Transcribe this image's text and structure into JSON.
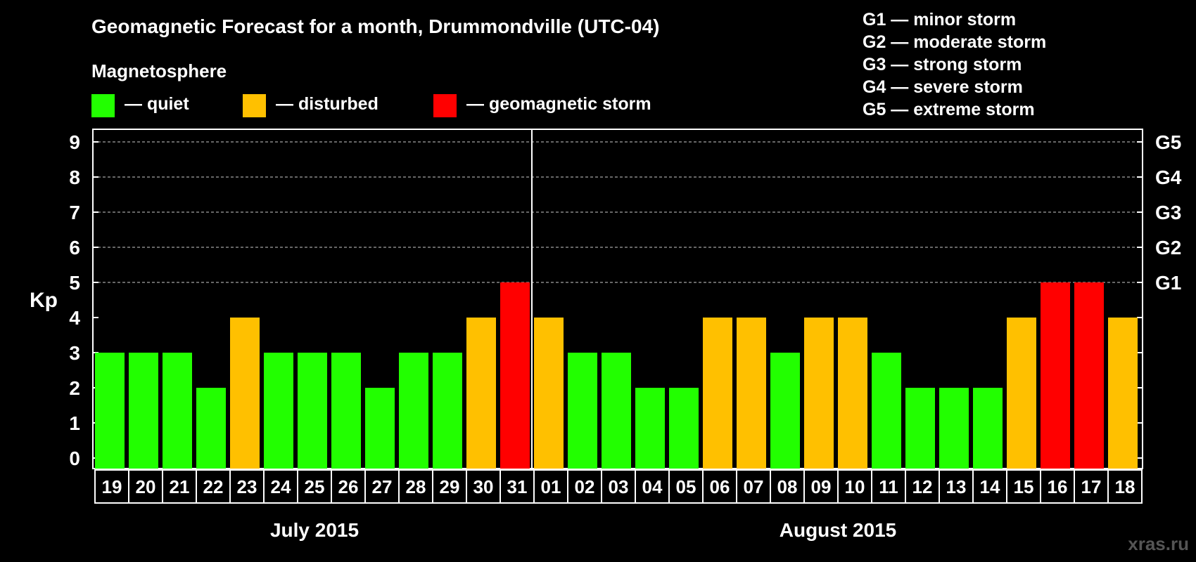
{
  "title": "Geomagnetic Forecast for a month, Drummondville (UTC-04)",
  "subtitle": "Magnetosphere",
  "legend": [
    {
      "label": "— quiet",
      "color": "#22ff00"
    },
    {
      "label": "— disturbed",
      "color": "#ffc000"
    },
    {
      "label": "— geomagnetic storm",
      "color": "#ff0000"
    }
  ],
  "storm_scale": [
    "G1 — minor storm",
    "G2 — moderate storm",
    "G3 — strong storm",
    "G4 — severe storm",
    "G5 — extreme storm"
  ],
  "watermark": "xras.ru",
  "colors": {
    "quiet": "#22ff00",
    "disturbed": "#ffc000",
    "storm": "#ff0000",
    "grid": "#888888"
  },
  "chart_data": {
    "type": "bar",
    "ylabel": "Kp",
    "ylim": [
      0,
      9
    ],
    "yticks": [
      "0",
      "1",
      "2",
      "3",
      "4",
      "5",
      "6",
      "7",
      "8",
      "9"
    ],
    "right_axis_labels": {
      "5": "G1",
      "6": "G2",
      "7": "G3",
      "8": "G4",
      "9": "G5"
    },
    "grid": "dashed at 5-9",
    "categories": [
      "19",
      "20",
      "21",
      "22",
      "23",
      "24",
      "25",
      "26",
      "27",
      "28",
      "29",
      "30",
      "31",
      "01",
      "02",
      "03",
      "04",
      "05",
      "06",
      "07",
      "08",
      "09",
      "10",
      "11",
      "12",
      "13",
      "14",
      "15",
      "16",
      "17",
      "18"
    ],
    "values": [
      3,
      3,
      3,
      2,
      4,
      3,
      3,
      3,
      2,
      3,
      3,
      4,
      5,
      4,
      3,
      3,
      2,
      2,
      4,
      4,
      3,
      4,
      4,
      3,
      2,
      2,
      2,
      4,
      5,
      5,
      4
    ],
    "months": [
      {
        "label": "July 2015",
        "from": 0,
        "count": 13
      },
      {
        "label": "August 2015",
        "from": 13,
        "count": 18
      }
    ]
  }
}
